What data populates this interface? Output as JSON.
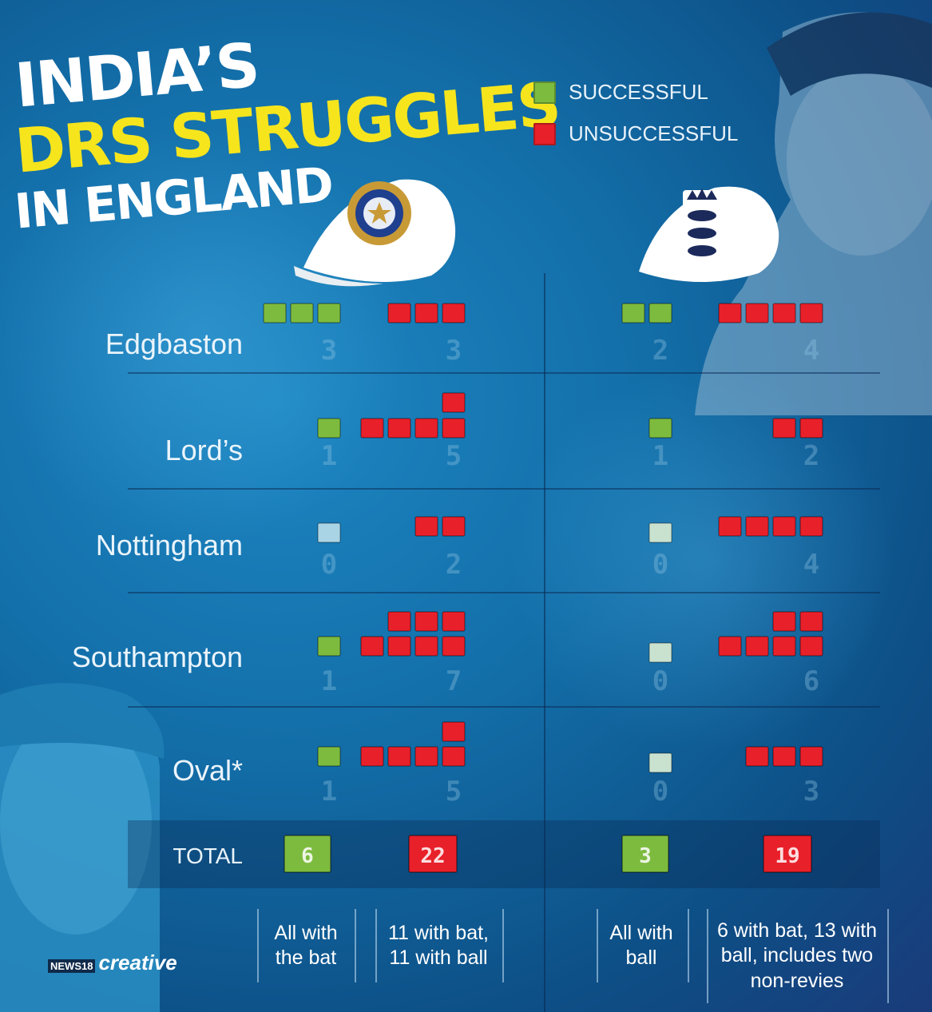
{
  "title": {
    "line1": "INDIA’S",
    "line2": "DRS STRUGGLES",
    "line3": "IN ENGLAND"
  },
  "legend": [
    {
      "label": "SUCCESSFUL",
      "color": "#7dbb3f"
    },
    {
      "label": "UNSUCCESSFUL",
      "color": "#e8202a"
    }
  ],
  "icons": {
    "india_cap": "bcci-cap-icon",
    "england_cap": "england-cap-icon"
  },
  "colors": {
    "success": "#7dbb3f",
    "fail": "#e8202a",
    "zero_india": "#a9d4e6",
    "zero_england": "#c9e2d0"
  },
  "chart_data": {
    "type": "table",
    "columns": [
      "India successful",
      "India unsuccessful",
      "England successful",
      "England unsuccessful"
    ],
    "rows": [
      {
        "venue": "Edgbaston",
        "india_success": 3,
        "india_fail": 3,
        "england_success": 2,
        "england_fail": 4
      },
      {
        "venue": "Lord’s",
        "india_success": 1,
        "india_fail": 5,
        "england_success": 1,
        "england_fail": 2
      },
      {
        "venue": "Nottingham",
        "india_success": 0,
        "india_fail": 2,
        "england_success": 0,
        "england_fail": 4
      },
      {
        "venue": "Southampton",
        "india_success": 1,
        "india_fail": 7,
        "england_success": 0,
        "england_fail": 6
      },
      {
        "venue": "Oval*",
        "india_success": 1,
        "india_fail": 5,
        "england_success": 0,
        "england_fail": 3
      }
    ],
    "total": {
      "label": "TOTAL",
      "india_success": 6,
      "india_fail": 22,
      "england_success": 3,
      "england_fail": 19
    }
  },
  "notes": {
    "india_success": "All with the bat",
    "india_fail": "11 with bat, 11 with ball",
    "england_success": "All with ball",
    "england_fail": "6 with bat, 13 with ball, includes two non-revies"
  },
  "brand": {
    "news": "NEWS18",
    "creative": "creative"
  }
}
